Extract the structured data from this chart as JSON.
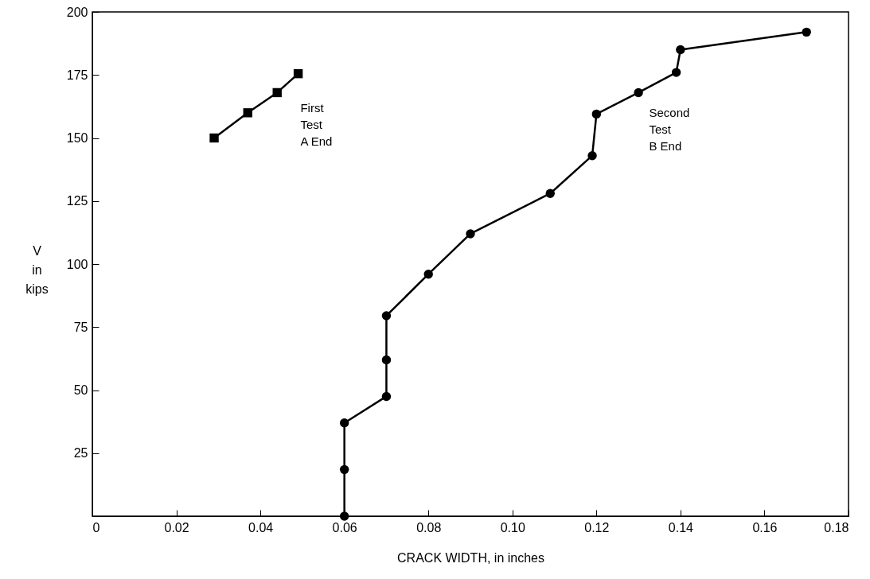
{
  "chart_data": {
    "type": "line",
    "xlabel": "CRACK WIDTH, in inches",
    "ylabel": "V\nin\nkips",
    "xlim": [
      0,
      0.18
    ],
    "xticks": [
      0,
      0.02,
      0.04,
      0.06,
      0.08,
      {
        "value": 0.1,
        "label": "0.10"
      },
      0.12,
      0.14,
      0.16,
      0.18
    ],
    "ylim": [
      0,
      200
    ],
    "yticks": [
      25,
      50,
      75,
      100,
      125,
      150,
      175,
      200
    ],
    "grid": false,
    "line_style": "solid",
    "series": [
      {
        "color": "#000000",
        "marker": "square",
        "x": [
          0.029,
          0.037,
          0.044,
          0.049
        ],
        "values": [
          150,
          160,
          168,
          175.5
        ]
      },
      {
        "color": "#000000",
        "marker": "circle",
        "x": [
          0.06,
          0.06,
          0.06,
          0.07,
          0.07,
          0.07,
          0.08,
          0.09,
          0.109,
          0.119,
          0.12,
          0.13,
          0.139,
          0.14,
          0.17
        ],
        "values": [
          0,
          18.5,
          37,
          47.5,
          62,
          79.5,
          96,
          112,
          128,
          143,
          159.5,
          168,
          176,
          185,
          192
        ]
      }
    ],
    "annotations": [
      {
        "text": "First\nTest\nA End",
        "x": 0.041,
        "y": 164
      },
      {
        "text": "Second\nTest\nB End",
        "x": 0.124,
        "y": 162
      }
    ]
  }
}
